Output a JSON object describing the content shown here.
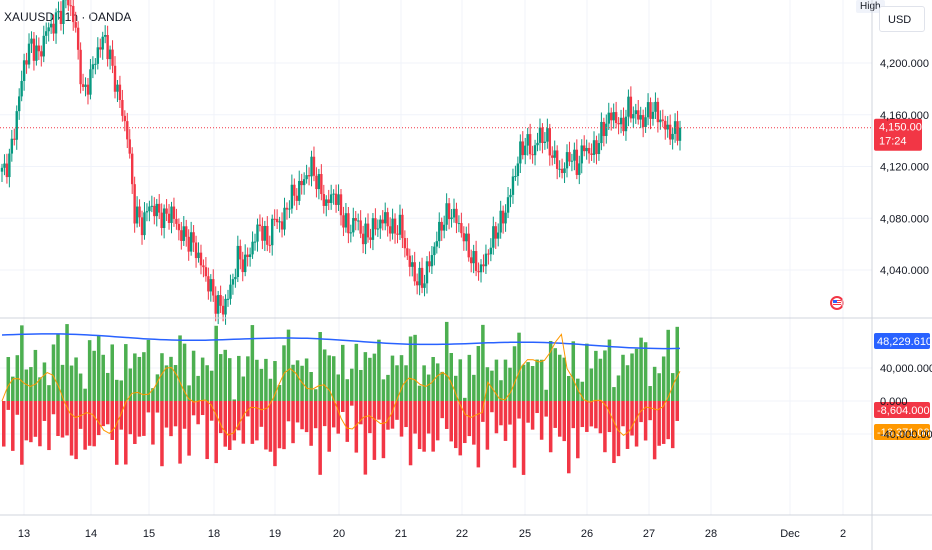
{
  "header": {
    "symbol_line": "XAUUSD · 1h · OANDA"
  },
  "controls": {
    "high_label": "High",
    "currency_label": "USD"
  },
  "colors": {
    "up": "#089981",
    "down": "#f23645",
    "hist_up": "#4caf50",
    "hist_down": "#f23645",
    "blue_line": "#2962ff",
    "orange_line": "#ff9800",
    "grid": "#f0f3fa"
  },
  "price_axis": {
    "ticks": [
      "4,200.000",
      "4,160.000",
      "4,120.000",
      "4,080.000",
      "4,040.000"
    ],
    "tick_values": [
      4200,
      4160,
      4120,
      4080,
      4040
    ]
  },
  "last_price_tag": {
    "price": "4,150.000",
    "countdown": "17:24"
  },
  "indicator_axis": {
    "ticks": [
      "40,000.000",
      "0.000",
      "-40,000.000"
    ],
    "tick_values": [
      40000,
      0,
      -40000
    ],
    "blue_tag": "48,229.610",
    "red_tag": "-8,604.000",
    "orange_tag": "-16,371.000"
  },
  "time_axis": {
    "labels": [
      "13",
      "14",
      "15",
      "18",
      "19",
      "20",
      "21",
      "22",
      "25",
      "26",
      "27",
      "28",
      "Dec",
      "2"
    ]
  },
  "chart_data": [
    {
      "type": "candlestick",
      "title": "XAUUSD · 1h · OANDA",
      "ylim": [
        4005,
        4250
      ],
      "last_price": 4150,
      "close_path_by_day": [
        {
          "day": "13",
          "closes": [
            4115,
            4125,
            4160,
            4200,
            4215,
            4205,
            4225,
            4230
          ]
        },
        {
          "day": "14",
          "closes": [
            4240,
            4250,
            4225,
            4175,
            4190,
            4210,
            4220,
            4195,
            4170,
            4145
          ]
        },
        {
          "day": "15",
          "closes": [
            4085,
            4075,
            4090,
            4085,
            4080,
            4085,
            4070,
            4065
          ]
        },
        {
          "day": "18",
          "closes": [
            4060,
            4045,
            4030,
            4015,
            4010,
            4025,
            4050,
            4045
          ]
        },
        {
          "day": "19",
          "closes": [
            4060,
            4075,
            4060,
            4080,
            4075,
            4095,
            4100,
            4110,
            4120,
            4105
          ]
        },
        {
          "day": "20",
          "closes": [
            4090,
            4100,
            4085,
            4070,
            4080,
            4065,
            4070,
            4075
          ]
        },
        {
          "day": "21",
          "closes": [
            4080,
            4070,
            4075,
            4050,
            4035,
            4030,
            4045,
            4065,
            4080,
            4085
          ]
        },
        {
          "day": "22",
          "closes": [
            4075,
            4060,
            4045,
            4040,
            4055,
            4070,
            4080,
            4100,
            4125,
            4140
          ]
        },
        {
          "day": "25",
          "closes": [
            4130,
            4145,
            4140,
            4125,
            4115,
            4130,
            4120,
            4135
          ]
        },
        {
          "day": "26",
          "closes": [
            4130,
            4140,
            4155,
            4160,
            4150,
            4165,
            4160,
            4155
          ]
        },
        {
          "day": "27",
          "closes": [
            4165,
            4160,
            4150,
            4145,
            4150
          ]
        }
      ]
    },
    {
      "type": "bar",
      "series": [
        {
          "values_kind": "histogram",
          "positive_max": 40000,
          "negative_min": -40000
        },
        {
          "values_kind": "line",
          "last": 48229.61
        },
        {
          "values_kind": "line",
          "last": -16371
        }
      ],
      "ylim": [
        -40000,
        48229.61
      ]
    }
  ]
}
